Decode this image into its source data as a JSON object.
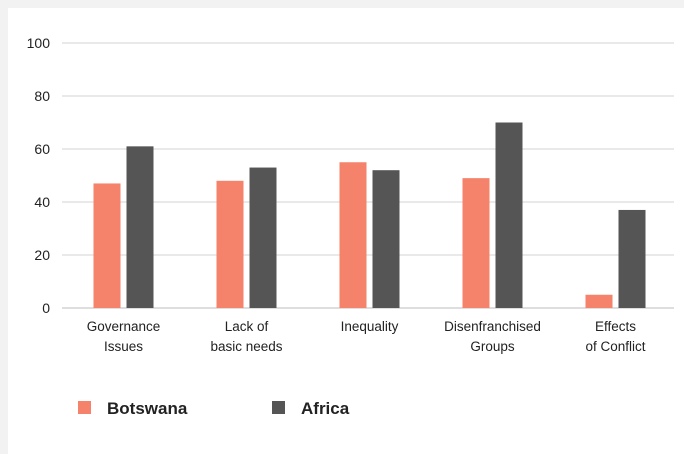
{
  "chart_data": {
    "type": "bar",
    "categories": [
      [
        "Governance",
        "Issues"
      ],
      [
        "Lack of",
        "basic needs"
      ],
      [
        "Inequality"
      ],
      [
        "Disenfranchised",
        "Groups"
      ],
      [
        "Effects",
        "of Conflict"
      ]
    ],
    "series": [
      {
        "name": "Botswana",
        "color": "#f5826a",
        "values": [
          47,
          48,
          55,
          49,
          5
        ]
      },
      {
        "name": "Africa",
        "color": "#555555",
        "values": [
          61,
          53,
          52,
          70,
          37
        ]
      }
    ],
    "ylim": [
      0,
      100
    ],
    "yticks": [
      0,
      20,
      40,
      60,
      80,
      100
    ],
    "grid": true,
    "legend_position": "bottom-left"
  }
}
